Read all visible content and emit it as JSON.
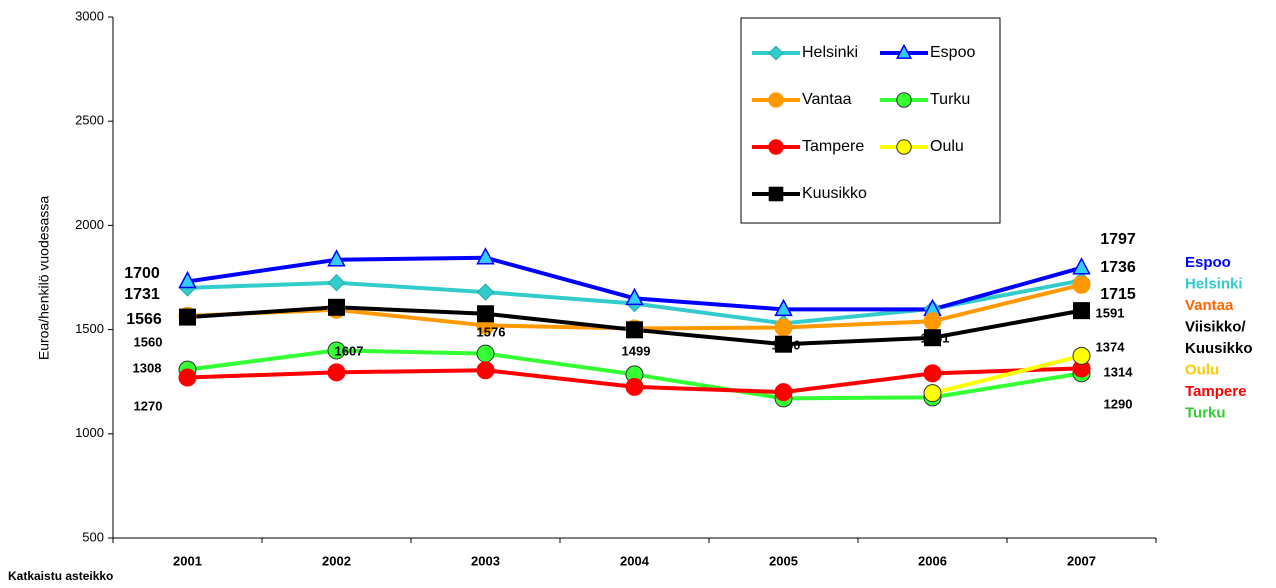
{
  "chart_data": {
    "type": "line",
    "y_label": "Euroa/henkilö vuodesassa",
    "footnote": "Katkaistu asteikko",
    "categories": [
      "2001",
      "2002",
      "2003",
      "2004",
      "2005",
      "2006",
      "2007"
    ],
    "ylim": [
      500,
      3000
    ],
    "yticks": [
      500,
      1000,
      1500,
      2000,
      2500,
      3000
    ],
    "series": [
      {
        "name": "Helsinki",
        "color": "#33cccc",
        "marker": "diamond",
        "values": [
          1700,
          1725,
          1680,
          1625,
          1530,
          1600,
          1736
        ]
      },
      {
        "name": "Espoo",
        "color": "#0000ff",
        "marker": "triangle",
        "values": [
          1731,
          1835,
          1845,
          1650,
          1597,
          1597,
          1797
        ]
      },
      {
        "name": "Vantaa",
        "color": "#ff9900",
        "marker": "circle",
        "values": [
          1566,
          1595,
          1520,
          1505,
          1510,
          1540,
          1715
        ]
      },
      {
        "name": "Turku",
        "color": "#33ff33",
        "marker": "circle-outlined",
        "values": [
          1308,
          1400,
          1385,
          1285,
          1170,
          1175,
          1290
        ]
      },
      {
        "name": "Tampere",
        "color": "#ff0000",
        "marker": "circle",
        "values": [
          1270,
          1295,
          1305,
          1225,
          1200,
          1290,
          1314
        ]
      },
      {
        "name": "Oulu",
        "color": "#ffff00",
        "marker": "circle-outlined",
        "values": [
          null,
          null,
          null,
          null,
          null,
          1195,
          1374
        ]
      },
      {
        "name": "Kuusikko",
        "color": "#000000",
        "marker": "square",
        "values": [
          1560,
          1607,
          1576,
          1499,
          1430,
          1461,
          1591
        ]
      }
    ],
    "side_legend": [
      {
        "text": "Espoo",
        "color": "#0000ff"
      },
      {
        "text": "Helsinki",
        "color": "#33cccc"
      },
      {
        "text": "Vantaa",
        "color": "#ff6600"
      },
      {
        "text": "Viisikko/",
        "color": "#000000"
      },
      {
        "text": "Kuusikko",
        "color": "#000000"
      },
      {
        "text": "Oulu",
        "color": "#ffcc00"
      },
      {
        "text": "Tampere",
        "color": "#ff0000"
      },
      {
        "text": "Turku",
        "color": "#33cc33"
      }
    ]
  }
}
